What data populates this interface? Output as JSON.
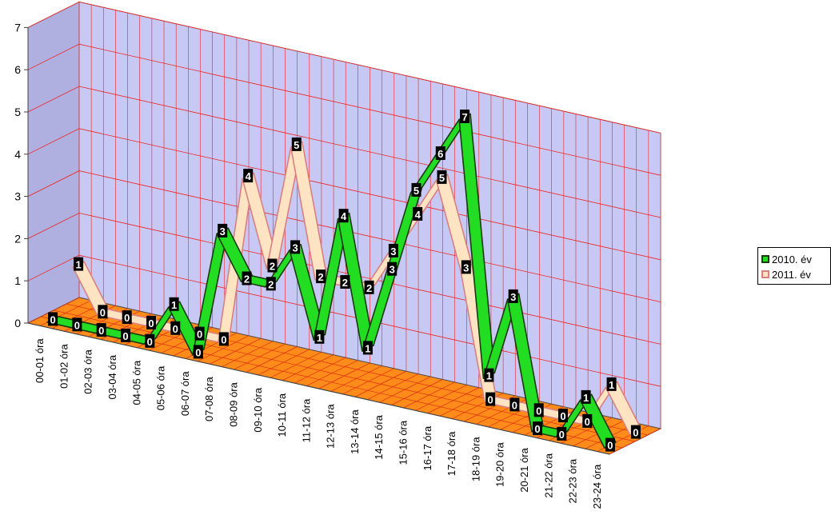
{
  "chart_data": {
    "type": "line",
    "title": "",
    "xlabel": "",
    "ylabel": "",
    "ylim": [
      0,
      7
    ],
    "yticks": [
      "0",
      "1",
      "2",
      "3",
      "4",
      "5",
      "6",
      "7"
    ],
    "grid": true,
    "three_d": true,
    "legend_position": "right",
    "categories": [
      "00-01 óra",
      "01-02 óra",
      "02-03 óra",
      "03-04 óra",
      "04-05 óra",
      "05-06 óra",
      "06-07 óra",
      "07-08 óra",
      "08-09 óra",
      "09-10 óra",
      "10-11 óra",
      "11-12 óra",
      "12-13 óra",
      "13-14 óra",
      "14-15 óra",
      "15-16 óra",
      "16-17 óra",
      "17-18 óra",
      "18-19 óra",
      "19-20 óra",
      "20-21 óra",
      "21-22 óra",
      "22-23 óra",
      "23-24 óra"
    ],
    "series": [
      {
        "name": "2010. év",
        "values": [
          0,
          0,
          0,
          0,
          0,
          1,
          0,
          3,
          2,
          2,
          3,
          1,
          4,
          1,
          3,
          5,
          6,
          7,
          1,
          3,
          0,
          0,
          1,
          0
        ],
        "color": "#22dd22",
        "outline": "#1a3a10"
      },
      {
        "name": "2011. év",
        "values": [
          1,
          0,
          0,
          0,
          0,
          0,
          0,
          4,
          2,
          5,
          2,
          2,
          2,
          3,
          4,
          5,
          3,
          0,
          0,
          0,
          0,
          0,
          1,
          0
        ],
        "color": "#ffe4c4",
        "outline": "#d98080"
      }
    ]
  }
}
